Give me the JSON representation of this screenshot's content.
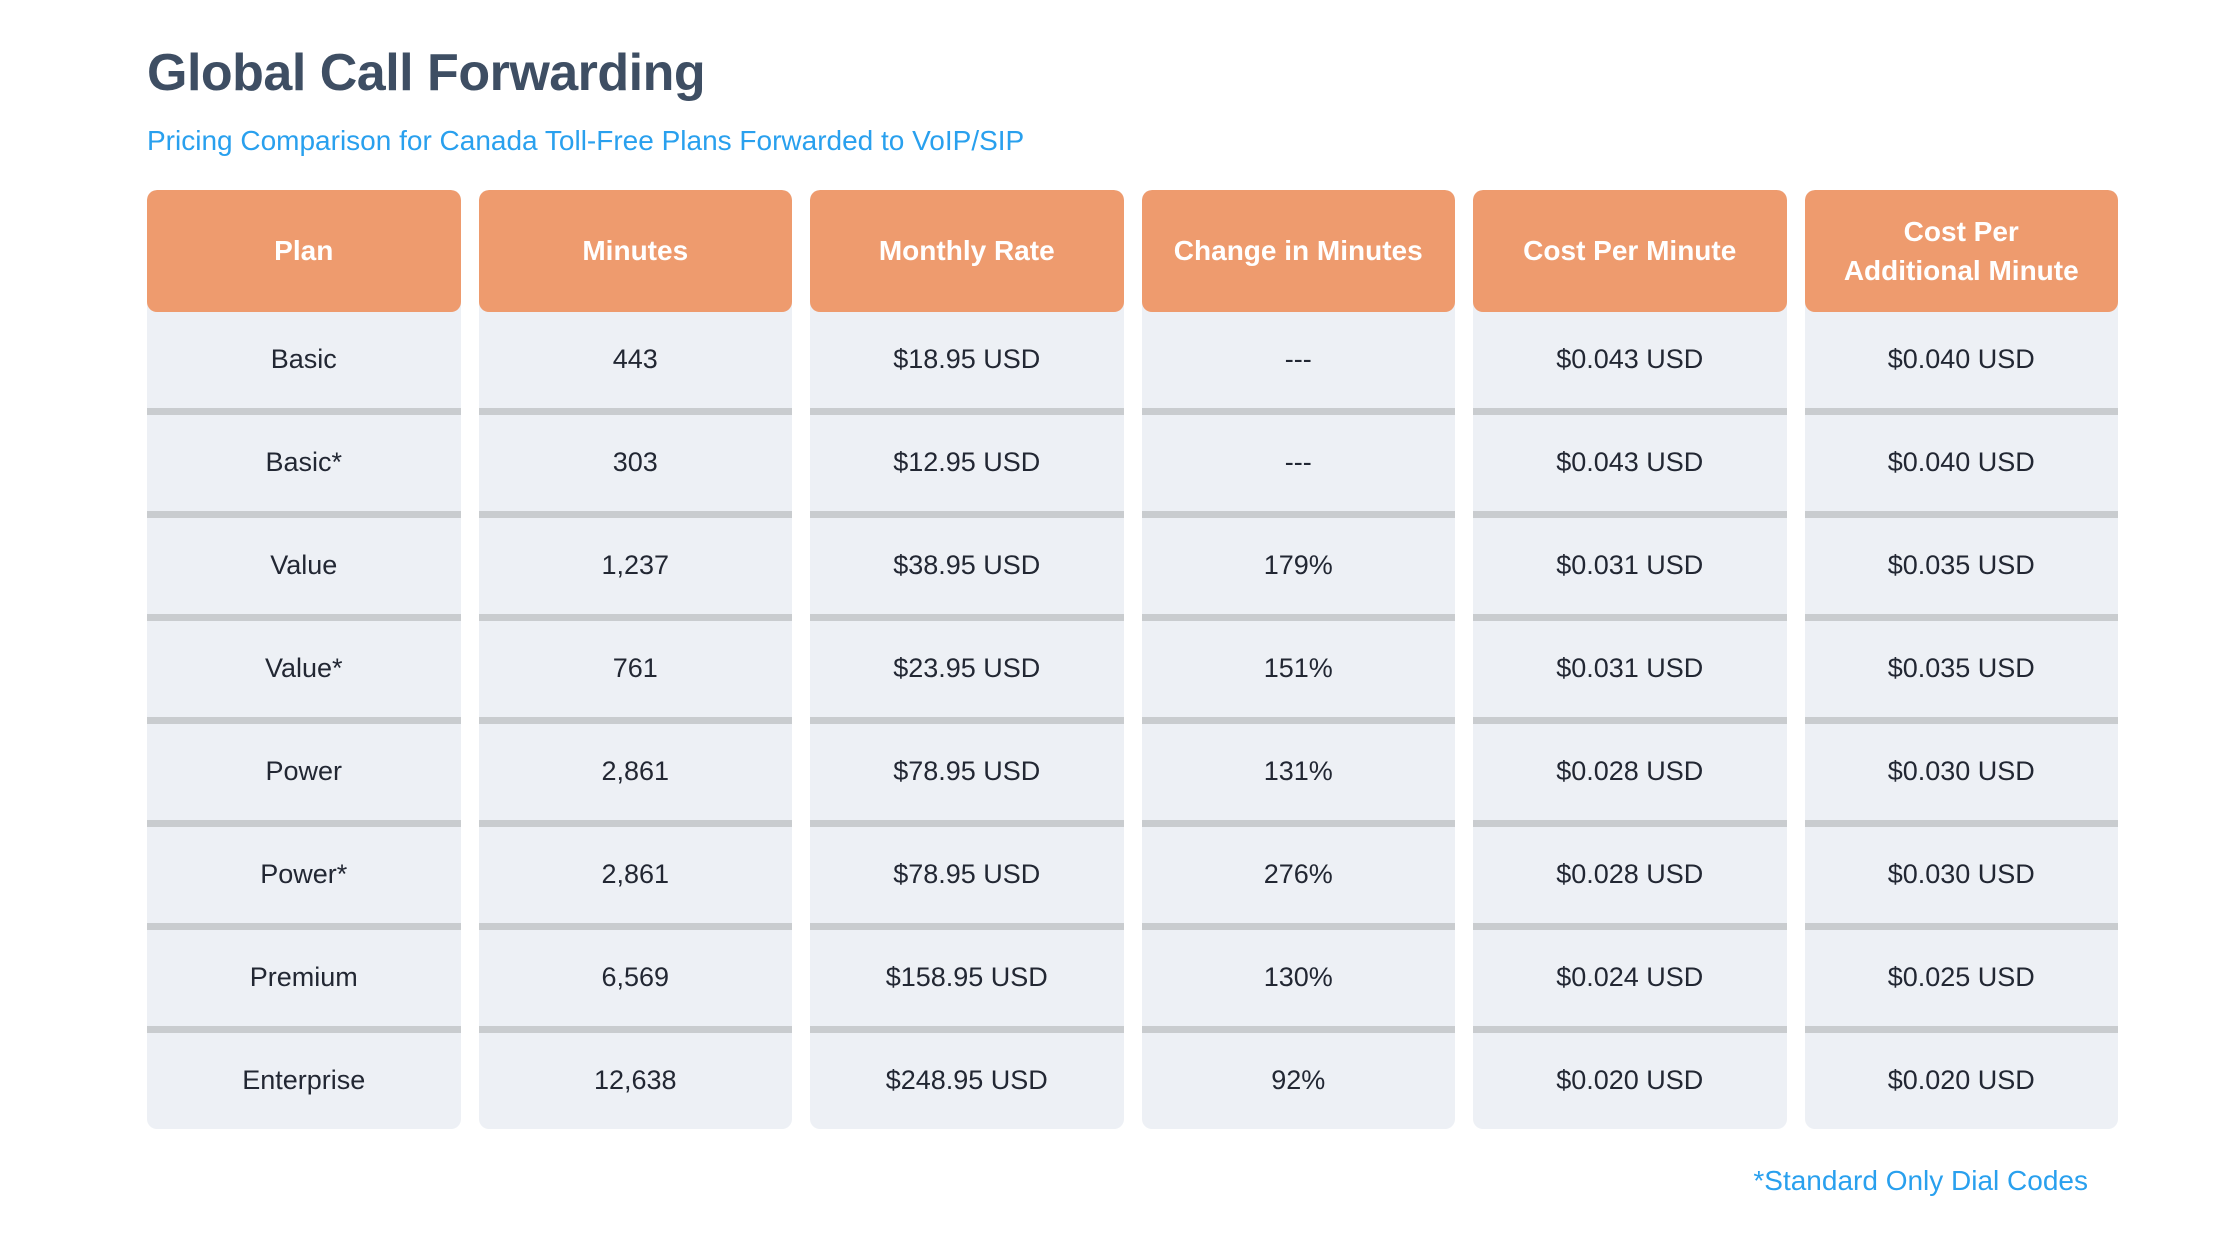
{
  "chart_data": {
    "type": "table",
    "title": "Global Call Forwarding",
    "subtitle": "Pricing Comparison for Canada Toll-Free Plans Forwarded to VoIP/SIP",
    "columns": [
      "Plan",
      "Minutes",
      "Monthly Rate",
      "Change in Minutes",
      "Cost Per Minute",
      "Cost Per Additional Minute"
    ],
    "rows": [
      [
        "Basic",
        "443",
        "$18.95 USD",
        "---",
        "$0.043 USD",
        "$0.040 USD"
      ],
      [
        "Basic*",
        "303",
        "$12.95 USD",
        "---",
        "$0.043 USD",
        "$0.040 USD"
      ],
      [
        "Value",
        "1,237",
        "$38.95 USD",
        "179%",
        "$0.031 USD",
        "$0.035 USD"
      ],
      [
        "Value*",
        "761",
        "$23.95 USD",
        "151%",
        "$0.031 USD",
        "$0.035 USD"
      ],
      [
        "Power",
        "2,861",
        "$78.95 USD",
        "131%",
        "$0.028 USD",
        "$0.030 USD"
      ],
      [
        "Power*",
        "2,861",
        "$78.95 USD",
        "276%",
        "$0.028 USD",
        "$0.030 USD"
      ],
      [
        "Premium",
        "6,569",
        "$158.95 USD",
        "130%",
        "$0.024 USD",
        "$0.025 USD"
      ],
      [
        "Enterprise",
        "12,638",
        "$248.95 USD",
        "92%",
        "$0.020 USD",
        "$0.020 USD"
      ]
    ],
    "footnote": "*Standard Only Dial Codes",
    "legend_position": "none",
    "grid": "row-separators-only"
  },
  "colors": {
    "page_bg": "#ffffff",
    "accent_orange": "#ee9b6e",
    "header_text": "#ffffff",
    "row_bg": "#edf0f5",
    "separator": "#c9cccf",
    "title_text": "#3e4e63",
    "link_blue": "#29a0ee",
    "cell_text": "#222733"
  }
}
